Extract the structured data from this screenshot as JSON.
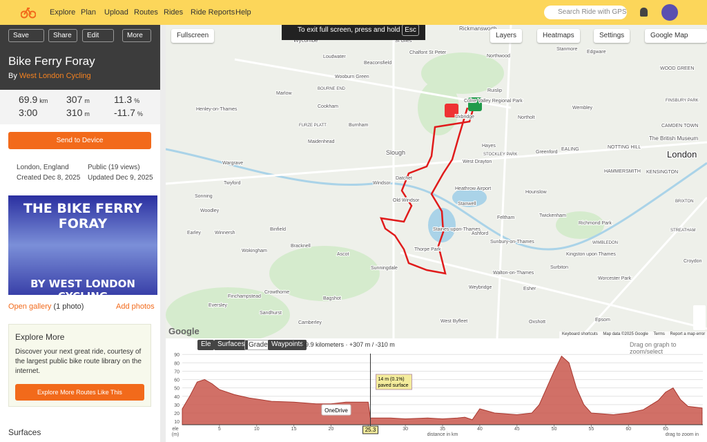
{
  "nav": {
    "links": [
      "Explore",
      "Plan",
      "Upload",
      "Routes",
      "Rides",
      "Ride Reports",
      "Help"
    ],
    "search": "Search Ride with GPS"
  },
  "route": {
    "actions": [
      "Save",
      "Share",
      "Edit",
      "More"
    ],
    "title": "Bike Ferry Foray",
    "by": "By",
    "author": "West London Cycling",
    "stats": [
      {
        "value": 69.9,
        "unit": "km"
      },
      {
        "value": 307,
        "unit": "m"
      },
      {
        "value": 11.3,
        "unit": "%"
      },
      {
        "value": "3:00"
      },
      {
        "value": 310,
        "unit": "m"
      },
      {
        "value": -11.7,
        "unit": "%"
      }
    ],
    "send": "Send to Device",
    "meta": [
      "London, England",
      "Public (19 views)",
      "Created Dec 8, 2025",
      "Updated Dec 9, 2025"
    ],
    "image_title": "THE BIKE FERRY FORAY",
    "image_subtitle": "BY WEST LONDON CYCLING",
    "gallery": "Open gallery",
    "gallery_count": "(1 photo)",
    "add_photos": "Add photos",
    "explore": {
      "title": "Explore More",
      "text": "Discover your next great ride, courtesy of the largest public bike route library on the internet.",
      "button": "Explore More Routes Like This"
    },
    "surfaces": "Surfaces"
  },
  "map": {
    "fullscreen": "Fullscreen",
    "toast": "To exit full screen, press and hold",
    "toast_key": "Esc",
    "controls": [
      "Layers",
      "Heatmaps",
      "Settings",
      "Google Map"
    ],
    "labels": [
      "Rickmansworth",
      "Wycombe",
      "St Giles",
      "Chalfont St Peter",
      "Northwood",
      "Stanmore",
      "Edgware",
      "Loudwater",
      "Beaconsfield",
      "Wooburn Green",
      "Marlow",
      "BOURNE END",
      "Colne Valley Regional Park",
      "Ruislip",
      "Wembley",
      "Cookham",
      "Uxbridge",
      "Northolt",
      "CAMDEN TOWN",
      "Henley-on-Thames",
      "FURZE PLATT",
      "Burnham",
      "Hayes",
      "EALING",
      "NOTTING HILL",
      "The British Museum",
      "Maidenhead",
      "Greenford",
      "Slough",
      "STOCKLEY PARK",
      "Wargrave",
      "Twyford",
      "West Drayton",
      "HAMMERSMITH",
      "KENSINGTON",
      "London",
      "Windsor",
      "Datchet",
      "Heathrow Airport",
      "Hounslow",
      "Sonning",
      "Woodley",
      "Old Windsor",
      "Stanwell",
      "BRIXTON",
      "Twickenham",
      "Earley",
      "Winnersh",
      "Binfield",
      "Staines-upon-Thames",
      "Richmond Park",
      "Feltham",
      "Ashford",
      "STREATHAM",
      "Bracknell",
      "Wokingham",
      "WIMBLEDON",
      "Sunbury-on-Thames",
      "Thorpe Park",
      "Ascot",
      "Kingston upon Thames",
      "Surbiton",
      "Sunningdale",
      "Walton-on-Thames",
      "Crowthorne",
      "Weybridge",
      "Esher",
      "Worcester Park",
      "Bagshot",
      "Finchampstead",
      "Eversley",
      "Sandhurst",
      "Camberley",
      "West Byfleet",
      "Oxshott",
      "Epsom",
      "Croydon",
      "WOOD GREEN",
      "FINSBURY PARK"
    ],
    "footer": [
      "Keyboard shortcuts",
      "Map data ©2025 Google",
      "Terms",
      "Report a map error"
    ],
    "logo": "Google"
  },
  "chart_data": {
    "type": "area",
    "tabs": [
      "Ele",
      "Surfaces",
      "Grade",
      "Waypoints"
    ],
    "summary": "69.9 kilometers · +307 m / -310 m",
    "hint": "Drag on graph to zoom/select",
    "ylabel": "ele",
    "yunit": "(m)",
    "xlabel": "distance in km",
    "zoom_hint": "drag to zoom in",
    "tooltip": [
      "14 m (0.1%)",
      "paved surface"
    ],
    "cursor": 25.3,
    "popup": "OneDrive",
    "color": "#c9574c",
    "x": [
      0,
      1,
      2,
      3,
      4,
      5,
      7,
      9,
      12,
      15,
      18,
      20,
      22,
      24,
      25,
      25.3,
      26,
      28,
      30,
      33,
      35,
      37,
      38,
      39,
      40,
      42,
      45,
      47,
      48,
      49,
      50,
      51,
      52,
      53,
      54,
      55,
      58,
      60,
      62,
      64,
      65,
      66,
      67,
      68,
      69.9
    ],
    "values": [
      25,
      40,
      57,
      60,
      55,
      48,
      42,
      38,
      34,
      33,
      31,
      31,
      33,
      33,
      33,
      14,
      14,
      14,
      13,
      14,
      13,
      14,
      15,
      12,
      25,
      20,
      18,
      20,
      30,
      50,
      70,
      88,
      80,
      50,
      30,
      20,
      18,
      20,
      24,
      35,
      45,
      50,
      36,
      28,
      26
    ],
    "xlim": [
      0,
      70
    ],
    "ylim": [
      6,
      91
    ],
    "xticks": [
      5,
      10,
      15,
      20,
      25,
      30,
      35,
      40,
      45,
      50,
      55,
      60,
      65
    ],
    "yticks": [
      10,
      20,
      30,
      40,
      50,
      60,
      70,
      80,
      90
    ]
  }
}
